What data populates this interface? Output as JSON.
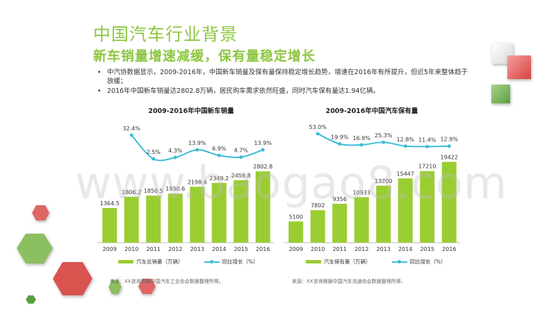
{
  "header": {
    "title": "中国汽车行业背景",
    "subtitle": "新车销量增速减缓，保有量稳定增长"
  },
  "bullets": [
    "中汽协数据显示，2009-2016年，中国新车销量及保有量保持稳定增长趋势，增速在2016年有所提升，但近5年来整体趋于放缓；",
    "2016年中国新车销量达2802.8万辆，居民购车需求依然旺盛，同时汽车保有量达1.94亿辆。"
  ],
  "watermark": "www.baogao8.com",
  "colors": {
    "bar": "#9acd32",
    "line": "#3bbcd8",
    "accent": "#8cc63f"
  },
  "chart_data": [
    {
      "type": "bar",
      "title": "2009-2016年中国新车销量",
      "categories": [
        "2009",
        "2010",
        "2011",
        "2012",
        "2013",
        "2014",
        "2015",
        "2016"
      ],
      "series": [
        {
          "name": "汽车总销量（万辆）",
          "type": "bar",
          "values": [
            1364.5,
            1806.2,
            1850.5,
            1930.6,
            2198.4,
            2349.2,
            2459.8,
            2802.8
          ],
          "labels": [
            "1364.5",
            "1806.2",
            "1850.5",
            "1930.6",
            "2198.4",
            "2349.2",
            "2459.8",
            "2802.8"
          ]
        },
        {
          "name": "同比增长（%）",
          "type": "line",
          "values": [
            null,
            32.4,
            2.5,
            4.3,
            13.9,
            6.9,
            4.7,
            13.9
          ],
          "labels": [
            "",
            "32.4%",
            "2.5%",
            "4.3%",
            "13.9%",
            "6.9%",
            "4.7%",
            "13.9%"
          ]
        }
      ],
      "ylim": [
        0,
        3000
      ],
      "source": "来源：XX咨询根据中国汽车工业协会数据整理所得。"
    },
    {
      "type": "bar",
      "title": "2009-2016年中国汽车保有量",
      "categories": [
        "2009",
        "2010",
        "2011",
        "2012",
        "2013",
        "2014",
        "2015",
        "2016"
      ],
      "series": [
        {
          "name": "汽车保有量（万辆）",
          "type": "bar",
          "values": [
            5100,
            7802,
            9356,
            10933,
            13700,
            15447,
            17210,
            19422
          ],
          "labels": [
            "5100",
            "7802",
            "9356",
            "10933",
            "13700",
            "15447",
            "17210",
            "19422"
          ]
        },
        {
          "name": "同比增长（%）",
          "type": "line",
          "values": [
            null,
            53.0,
            19.9,
            16.9,
            25.3,
            12.8,
            11.4,
            12.9
          ],
          "labels": [
            "",
            "53.0%",
            "19.9%",
            "16.9%",
            "25.3%",
            "12.8%",
            "11.4%",
            "12.9%"
          ]
        }
      ],
      "ylim": [
        0,
        20000
      ],
      "source": "来源：XX咨询根据中国汽车流通协会数据整理所得。"
    }
  ]
}
